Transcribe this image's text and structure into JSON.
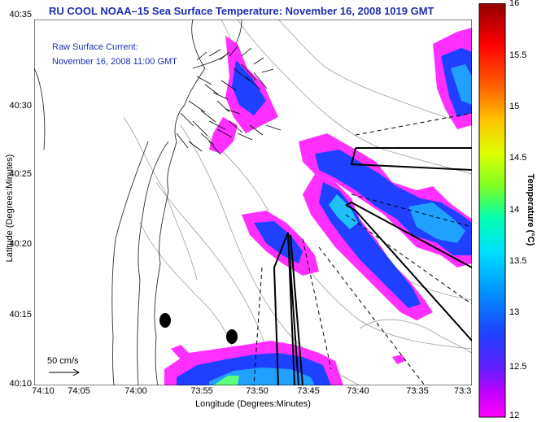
{
  "title": "RU COOL  NOAA–15  Sea Surface Temperature:  November 16, 2008 1019 GMT",
  "legend": {
    "line1": "Raw Surface Current:",
    "line2": "November 16, 2008 11:00 GMT"
  },
  "axes": {
    "xlabel": "Longitude (Degrees:Minutes)",
    "ylabel": "Latitude (Degrees:Minutes)",
    "xticks": [
      "74:10",
      "74:05",
      "74:00",
      "73:55",
      "73:50",
      "73:45",
      "73:40",
      "73:35",
      "73:3"
    ],
    "yticks": [
      "40:35",
      "40:30",
      "40:25",
      "40:20",
      "40:15",
      "40:10"
    ]
  },
  "colorbar": {
    "label": "Temperature (°C)",
    "ticks": [
      "16",
      "15.5",
      "15",
      "14.5",
      "14",
      "13.5",
      "13",
      "12.5",
      "12"
    ],
    "range": [
      12,
      16
    ],
    "colors": [
      "#ff00ff",
      "#a000ff",
      "#2020ff",
      "#00a0ff",
      "#00ffff",
      "#00ff80",
      "#c0ff00",
      "#ffff00",
      "#ff8000",
      "#ff0000",
      "#900000"
    ]
  },
  "scale": {
    "label": "50 cm/s"
  },
  "colors": {
    "title_text": "#1c2fb0",
    "land_outline": "#000000",
    "bathymetry": "#909090",
    "sst_cold": "#ff00ff",
    "sst_mid": "#2050ff",
    "sst_warm": "#00c0ff",
    "vectors": "#000000"
  }
}
